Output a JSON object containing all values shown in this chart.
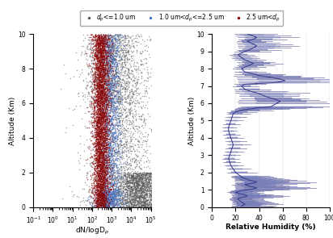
{
  "legend_labels": [
    "d_p<=1.0 um",
    "1.0 um<d_p<=2.5 um",
    "2.5 um<d_p"
  ],
  "legend_colors": [
    "#555555",
    "#4472c4",
    "#8b0000"
  ],
  "left_xlabel": "dN/logD$_p$",
  "left_ylabel": "Altitude (Km)",
  "right_xlabel": "Relative Humidity (%)",
  "right_ylabel": "Altitude (Km)",
  "left_xlim": [
    0.1,
    100000.0
  ],
  "left_ylim": [
    0,
    10
  ],
  "right_xlim": [
    0,
    100
  ],
  "right_ylim": [
    0,
    10
  ],
  "right_xticks": [
    0,
    20,
    40,
    60,
    80,
    100
  ],
  "left_yticks": [
    0,
    2,
    4,
    6,
    8,
    10
  ],
  "right_yticks": [
    0,
    1,
    2,
    3,
    4,
    5,
    6,
    7,
    8,
    9,
    10
  ],
  "rh_line_color": "#3a3a8c",
  "rh_box_color": "#b8c8e8",
  "scatter_alpha": 0.5,
  "scatter_size": 1.2
}
